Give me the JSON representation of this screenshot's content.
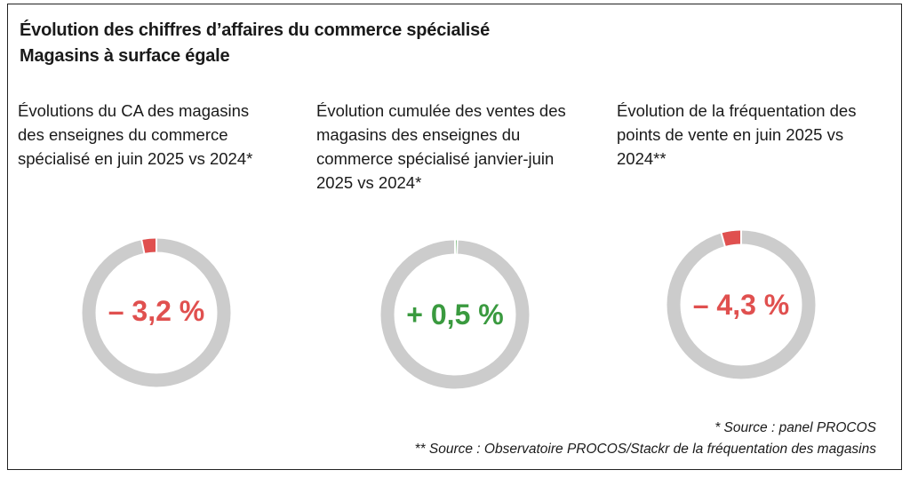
{
  "title": {
    "line1": "Évolution des chiffres d’affaires du commerce spécialisé",
    "line2": "Magasins à surface égale"
  },
  "colors": {
    "negative": "#e0504f",
    "positive": "#3a9a3f",
    "ring": "#cccccc"
  },
  "chart_data": [
    {
      "type": "pie",
      "title": "Évolutions du CA des magasins des enseignes du commerce spécialisé en juin 2025 vs 2024*",
      "title_lines": [
        "Évolutions du CA des magasins",
        "des enseignes du commerce",
        "spécialisé en juin 2025 vs 2024*"
      ],
      "value": -3.2,
      "unit": "%",
      "label": "– 3,2 %"
    },
    {
      "type": "pie",
      "title": "Évolution cumulée des ventes des magasins des enseignes du commerce spécialisé janvier-juin 2025 vs 2024*",
      "title_lines": [
        "Évolution cumulée des ventes des",
        "magasins des enseignes du",
        "commerce spécialisé janvier-juin",
        "2025 vs 2024*"
      ],
      "value": 0.5,
      "unit": "%",
      "label": "+ 0,5 %"
    },
    {
      "type": "pie",
      "title": "Évolution de la fréquentation des points de vente en juin 2025 vs 2024**",
      "title_lines": [
        "Évolution de la fréquentation des",
        "points de vente en juin 2025 vs",
        "2024**"
      ],
      "value": -4.3,
      "unit": "%",
      "label": "– 4,3 %"
    }
  ],
  "footnotes": {
    "note1": "* Source : panel PROCOS",
    "note2": "** Source : Observatoire PROCOS/Stackr de la fréquentation des magasins"
  }
}
